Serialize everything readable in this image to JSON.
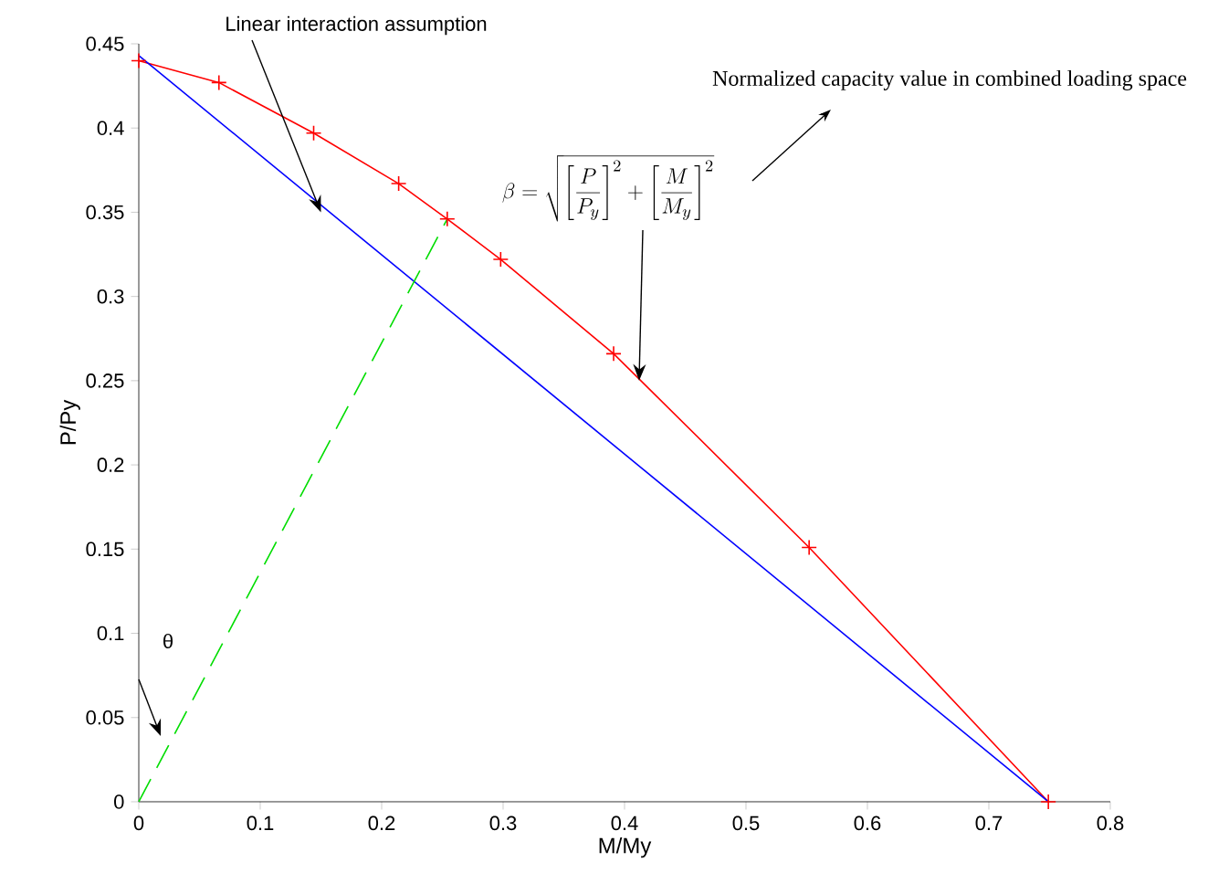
{
  "chart_data": {
    "type": "line",
    "xlabel": "M/My",
    "ylabel": "P/Py",
    "xlim": [
      0,
      0.8
    ],
    "ylim": [
      0,
      0.45
    ],
    "xticks": [
      0,
      0.1,
      0.2,
      0.3,
      0.4,
      0.5,
      0.6,
      0.7,
      0.8
    ],
    "yticks": [
      0,
      0.05,
      0.1,
      0.15,
      0.2,
      0.25,
      0.3,
      0.35,
      0.4,
      0.45
    ],
    "series": [
      {
        "color": "#ff0000",
        "marker": "cross",
        "line_style": "solid",
        "x": [
          0,
          0.066,
          0.144,
          0.214,
          0.254,
          0.298,
          0.391,
          0.552,
          0.749
        ],
        "values": [
          0.44,
          0.427,
          0.397,
          0.367,
          0.346,
          0.322,
          0.266,
          0.151,
          0
        ]
      },
      {
        "color": "#0000ff",
        "marker": "none",
        "line_style": "solid",
        "x": [
          0,
          0.749
        ],
        "values": [
          0.443,
          0
        ]
      },
      {
        "color": "#00dd00",
        "marker": "none",
        "line_style": "dashed",
        "x": [
          0,
          0.254
        ],
        "values": [
          0,
          0.346
        ]
      }
    ],
    "annotations": [
      {
        "text": "Linear interaction assumption",
        "x": 0.15,
        "y": 0.35
      },
      {
        "text": "\\beta = \\sqrt{\\left[\\frac{P}{P_y}\\right]^2 + \\left[\\frac{M}{M_y}\\right]^2}",
        "x": 0.412,
        "y": 0.25
      },
      "Normalized capacity value in combined loading space",
      "θ"
    ]
  }
}
